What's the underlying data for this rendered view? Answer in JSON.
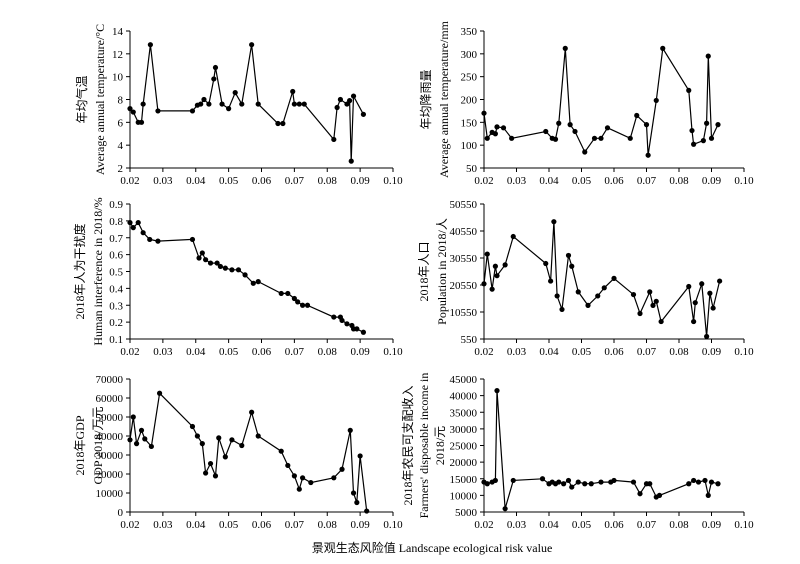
{
  "xlabel": "景观生态风险值 Landscape ecological risk value",
  "chart_data": [
    {
      "type": "line",
      "ylabel_lines": [
        "年均气温",
        "Average annual temperature/°C"
      ],
      "xlim": [
        0.02,
        0.1
      ],
      "xticks": [
        "0.02",
        "0.03",
        "0.04",
        "0.05",
        "0.06",
        "0.07",
        "0.08",
        "0.09",
        "0.10"
      ],
      "ylim": [
        2,
        14
      ],
      "yticks": [
        "2",
        "4",
        "6",
        "8",
        "10",
        "12",
        "14"
      ],
      "x": [
        0.02,
        0.021,
        0.0225,
        0.0235,
        0.024,
        0.0262,
        0.0285,
        0.039,
        0.0405,
        0.0415,
        0.0425,
        0.044,
        0.0455,
        0.046,
        0.048,
        0.05,
        0.052,
        0.054,
        0.057,
        0.059,
        0.065,
        0.0665,
        0.0695,
        0.07,
        0.0715,
        0.073,
        0.082,
        0.083,
        0.084,
        0.086,
        0.0868,
        0.0873,
        0.088,
        0.091
      ],
      "y": [
        7.2,
        6.9,
        6.0,
        6.0,
        7.6,
        12.8,
        7.0,
        7.0,
        7.5,
        7.6,
        8.0,
        7.6,
        9.8,
        10.8,
        7.6,
        7.2,
        8.6,
        7.6,
        12.8,
        7.6,
        5.9,
        5.9,
        8.7,
        7.6,
        7.6,
        7.6,
        4.5,
        7.3,
        8.0,
        7.6,
        7.9,
        2.6,
        8.3,
        6.7
      ]
    },
    {
      "type": "line",
      "ylabel_lines": [
        "年均降雨量",
        "Average annual temperature/mm"
      ],
      "xlim": [
        0.02,
        0.1
      ],
      "xticks": [
        "0.02",
        "0.03",
        "0.04",
        "0.05",
        "0.06",
        "0.07",
        "0.08",
        "0.09",
        "0.10"
      ],
      "ylim": [
        50,
        350
      ],
      "yticks": [
        "50",
        "100",
        "150",
        "200",
        "250",
        "300",
        "350"
      ],
      "x": [
        0.02,
        0.021,
        0.0225,
        0.0235,
        0.024,
        0.026,
        0.0285,
        0.039,
        0.041,
        0.042,
        0.043,
        0.045,
        0.0465,
        0.048,
        0.051,
        0.054,
        0.056,
        0.058,
        0.065,
        0.067,
        0.07,
        0.0705,
        0.073,
        0.075,
        0.083,
        0.084,
        0.0845,
        0.0875,
        0.0885,
        0.089,
        0.09,
        0.092
      ],
      "y": [
        170,
        115,
        128,
        125,
        140,
        138,
        115,
        130,
        115,
        113,
        148,
        312,
        145,
        130,
        85,
        115,
        115,
        138,
        115,
        165,
        145,
        78,
        198,
        312,
        220,
        132,
        102,
        110,
        148,
        295,
        115,
        145
      ]
    },
    {
      "type": "line",
      "ylabel_lines": [
        "2018年人为干扰度",
        "Human interference in 2018/%"
      ],
      "xlim": [
        0.02,
        0.1
      ],
      "xticks": [
        "0.02",
        "0.03",
        "0.04",
        "0.05",
        "0.06",
        "0.07",
        "0.08",
        "0.09",
        "0.10"
      ],
      "ylim": [
        0.1,
        0.9
      ],
      "yticks": [
        "0.1",
        "0.2",
        "0.3",
        "0.4",
        "0.5",
        "0.6",
        "0.7",
        "0.8",
        "0.9"
      ],
      "x": [
        0.02,
        0.021,
        0.0225,
        0.024,
        0.026,
        0.0285,
        0.039,
        0.041,
        0.042,
        0.043,
        0.0445,
        0.0465,
        0.0475,
        0.049,
        0.051,
        0.053,
        0.055,
        0.0575,
        0.059,
        0.066,
        0.068,
        0.07,
        0.071,
        0.0725,
        0.074,
        0.082,
        0.084,
        0.0845,
        0.086,
        0.0875,
        0.088,
        0.089,
        0.091
      ],
      "y": [
        0.79,
        0.76,
        0.79,
        0.73,
        0.69,
        0.68,
        0.69,
        0.58,
        0.61,
        0.57,
        0.55,
        0.55,
        0.53,
        0.52,
        0.51,
        0.51,
        0.48,
        0.43,
        0.44,
        0.37,
        0.37,
        0.34,
        0.32,
        0.3,
        0.3,
        0.23,
        0.23,
        0.21,
        0.19,
        0.18,
        0.16,
        0.16,
        0.14
      ]
    },
    {
      "type": "line",
      "ylabel_lines": [
        "2018年人口",
        "Population in 2018/人"
      ],
      "xlim": [
        0.02,
        0.1
      ],
      "xticks": [
        "0.02",
        "0.03",
        "0.04",
        "0.05",
        "0.06",
        "0.07",
        "0.08",
        "0.09",
        "0.10"
      ],
      "ylim": [
        550,
        50550
      ],
      "yticks": [
        "550",
        "10550",
        "20550",
        "30550",
        "40550",
        "50550"
      ],
      "x": [
        0.02,
        0.021,
        0.0225,
        0.0235,
        0.024,
        0.0265,
        0.029,
        0.039,
        0.0405,
        0.0415,
        0.0425,
        0.044,
        0.046,
        0.047,
        0.049,
        0.052,
        0.055,
        0.057,
        0.06,
        0.066,
        0.068,
        0.071,
        0.072,
        0.073,
        0.0745,
        0.083,
        0.0845,
        0.085,
        0.087,
        0.0885,
        0.0895,
        0.0905,
        0.0925
      ],
      "y": [
        21000,
        32000,
        19000,
        27500,
        24000,
        28000,
        38500,
        28500,
        22000,
        44000,
        16500,
        11500,
        31500,
        27500,
        18000,
        13000,
        16500,
        19500,
        23000,
        17000,
        10000,
        18000,
        13000,
        14500,
        7000,
        20000,
        7000,
        14000,
        21000,
        1500,
        17500,
        12000,
        22000
      ]
    },
    {
      "type": "line",
      "ylabel_lines": [
        "2018年GDP",
        "GDP 2018/万元"
      ],
      "xlim": [
        0.02,
        0.1
      ],
      "xticks": [
        "0.02",
        "0.03",
        "0.04",
        "0.05",
        "0.06",
        "0.07",
        "0.08",
        "0.09",
        "0.10"
      ],
      "ylim": [
        0,
        70000
      ],
      "yticks": [
        "0",
        "10000",
        "20000",
        "30000",
        "40000",
        "50000",
        "60000",
        "70000"
      ],
      "x": [
        0.02,
        0.021,
        0.022,
        0.0235,
        0.0245,
        0.0265,
        0.029,
        0.039,
        0.0405,
        0.042,
        0.043,
        0.0445,
        0.046,
        0.047,
        0.049,
        0.051,
        0.054,
        0.057,
        0.059,
        0.066,
        0.068,
        0.07,
        0.0715,
        0.0725,
        0.075,
        0.082,
        0.0845,
        0.087,
        0.088,
        0.089,
        0.09,
        0.092
      ],
      "y": [
        38000,
        50000,
        36000,
        43000,
        38500,
        34500,
        62500,
        45000,
        40000,
        36000,
        20500,
        25500,
        19000,
        39000,
        29000,
        38000,
        35000,
        52500,
        40000,
        32000,
        24500,
        19000,
        12000,
        18000,
        15500,
        18000,
        22500,
        43000,
        10000,
        5000,
        29500,
        500
      ]
    },
    {
      "type": "line",
      "ylabel_lines": [
        "2018年农民可支配收入",
        "Farmers' disposable income in",
        "2018/元"
      ],
      "xlim": [
        0.02,
        0.1
      ],
      "xticks": [
        "0.02",
        "0.03",
        "0.04",
        "0.05",
        "0.06",
        "0.07",
        "0.08",
        "0.09",
        "0.10"
      ],
      "ylim": [
        5000,
        45000
      ],
      "yticks": [
        "5000",
        "10000",
        "15000",
        "20000",
        "25000",
        "30000",
        "35000",
        "40000",
        "45000"
      ],
      "x": [
        0.02,
        0.021,
        0.0225,
        0.0235,
        0.024,
        0.0265,
        0.029,
        0.038,
        0.04,
        0.041,
        0.042,
        0.043,
        0.0445,
        0.046,
        0.047,
        0.049,
        0.051,
        0.053,
        0.056,
        0.059,
        0.06,
        0.066,
        0.068,
        0.07,
        0.071,
        0.073,
        0.074,
        0.083,
        0.0845,
        0.086,
        0.088,
        0.089,
        0.09,
        0.092
      ],
      "y": [
        14000,
        13500,
        14000,
        14500,
        41500,
        6000,
        14500,
        15000,
        13500,
        14000,
        13500,
        14000,
        13500,
        14500,
        12500,
        14000,
        13500,
        13500,
        14000,
        14000,
        14500,
        14000,
        10500,
        13500,
        13500,
        9500,
        10000,
        13500,
        14500,
        14000,
        14500,
        10000,
        14000,
        13500
      ]
    }
  ]
}
